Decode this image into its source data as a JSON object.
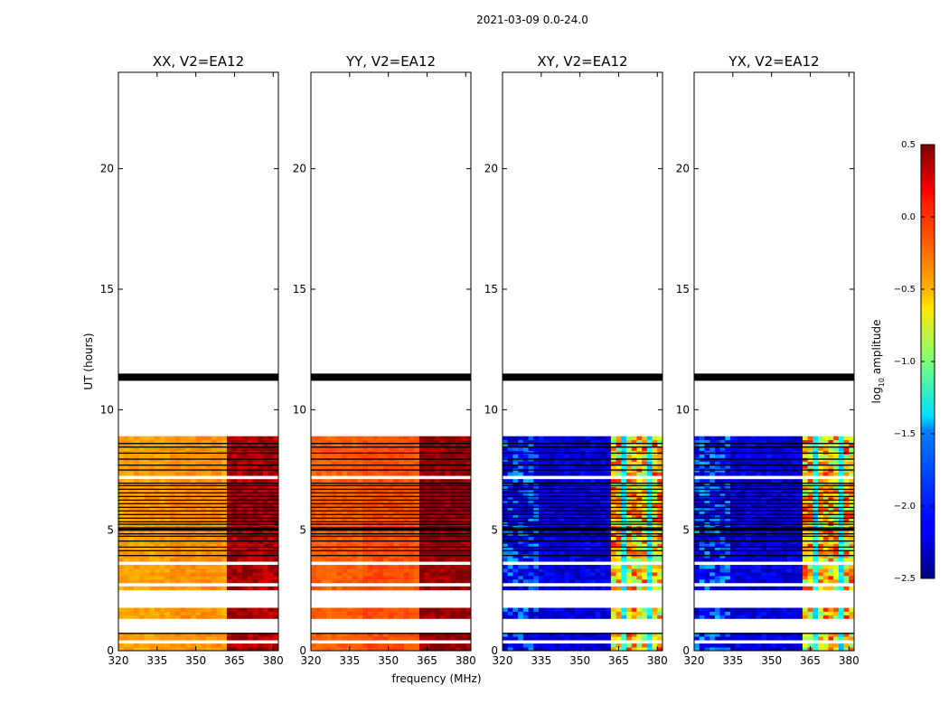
{
  "chart_data": {
    "type": "heatmap",
    "suptitle": "2021-03-09 0.0-24.0",
    "xlabel": "frequency (MHz)",
    "ylabel": "UT (hours)",
    "xlim": [
      320,
      382
    ],
    "ylim": [
      0,
      24
    ],
    "xticks": [
      "320",
      "335",
      "350",
      "365",
      "380"
    ],
    "xtick_values": [
      320,
      335,
      350,
      365,
      380
    ],
    "yticks": [
      "0",
      "5",
      "10",
      "15",
      "20"
    ],
    "ytick_values": [
      0,
      5,
      10,
      15,
      20
    ],
    "colormap": "jet",
    "colorbar": {
      "label_prefix": "log",
      "label_sub": "10",
      "label_suffix": " amplitude",
      "range": [
        -2.5,
        0.5
      ],
      "ticks": [
        "0.5",
        "0.0",
        "−0.5",
        "−1.0",
        "−1.5",
        "−2.0",
        "−2.5"
      ],
      "tick_values": [
        0.5,
        0.0,
        -0.5,
        -1.0,
        -1.5,
        -2.0,
        -2.5
      ]
    },
    "panels": [
      {
        "title": "XX, V2=EA12",
        "pol": "parallel",
        "base_level": -0.35,
        "band_level": 0.3,
        "show_ylabel": true
      },
      {
        "title": "YY, V2=EA12",
        "pol": "parallel",
        "base_level": -0.15,
        "band_level": 0.4,
        "show_ylabel": false
      },
      {
        "title": "XY, V2=EA12",
        "pol": "cross",
        "base_level": -2.4,
        "band_level": -1.1,
        "show_ylabel": false
      },
      {
        "title": "YX, V2=EA12",
        "pol": "cross",
        "base_level": -2.4,
        "band_level": -1.1,
        "show_ylabel": false
      }
    ],
    "strong_band_mhz": [
      362,
      382
    ],
    "data_time_range_hours": [
      0,
      8.9
    ],
    "flagged_time_bands_hours": [
      [
        11.2,
        11.5
      ]
    ],
    "gap_time_bands_hours": [
      [
        0.28,
        0.45
      ],
      [
        0.75,
        1.35
      ],
      [
        1.75,
        2.45
      ],
      [
        2.6,
        2.75
      ],
      [
        3.5,
        3.65
      ],
      [
        7.05,
        7.3
      ]
    ],
    "black_line_times_hours": [
      0.72,
      3.95,
      4.15,
      4.3,
      4.55,
      4.75,
      4.85,
      5.0,
      5.05,
      5.1,
      5.25,
      5.35,
      5.5,
      5.65,
      5.8,
      5.95,
      6.1,
      6.25,
      6.4,
      6.55,
      6.7,
      6.85,
      6.95,
      7.5,
      7.7,
      7.95,
      8.2,
      8.45,
      8.6
    ]
  }
}
